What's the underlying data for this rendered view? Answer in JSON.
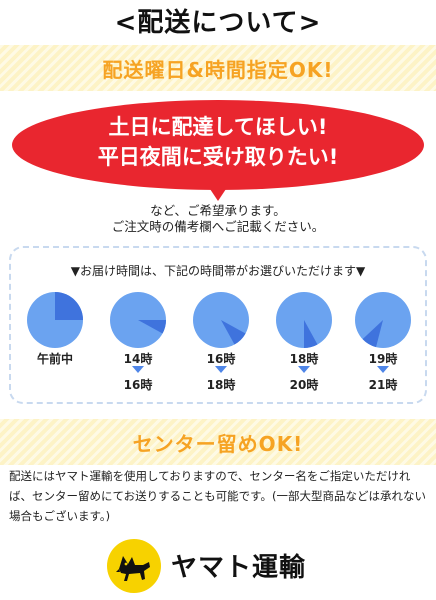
{
  "title": "<配送について>",
  "delivery_banner": "配送曜日&時間指定OK!",
  "bubble": {
    "line1": "土日に配達してほしい!",
    "line2": "平日夜間に受け取りたい!"
  },
  "note": {
    "line1": "など、ご希望承ります。",
    "line2": "ご注文時の備考欄へご記載ください。"
  },
  "time_header": "▼お届け時間は、下記の時間帯がお選びいただけます▼",
  "colors": {
    "pie_base": "#6ba3f0",
    "pie_slice": "#3f73dd",
    "banner_text": "#f6a323",
    "bubble": "#e9262f"
  },
  "time_slots": [
    {
      "from": "午前中",
      "to": "",
      "slice_start": 0,
      "slice_end": 0.25
    },
    {
      "from": "14時",
      "to": "16時",
      "slice_start": 0.25,
      "slice_end": 0.33
    },
    {
      "from": "16時",
      "to": "18時",
      "slice_start": 0.33,
      "slice_end": 0.42
    },
    {
      "from": "18時",
      "to": "20時",
      "slice_start": 0.42,
      "slice_end": 0.5
    },
    {
      "from": "19時",
      "to": "21時",
      "slice_start": 0.54,
      "slice_end": 0.63
    }
  ],
  "center_banner": "センター留めOK!",
  "center_desc": "配送にはヤマト運輸を使用しておりますので、センター名をご指定いただければ、センター留めにてお送りすることも可能です。(一部大型商品などは承れない場合もございます。)",
  "logo_text": "ヤマト運輸"
}
